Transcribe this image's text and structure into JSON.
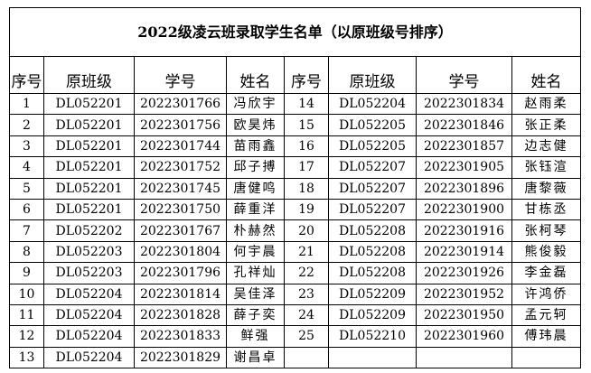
{
  "title": "2022级凌云班录取学生名单（以原班级号排序）",
  "headers": [
    "序号",
    "原班级",
    "学号",
    "姓名",
    "序号",
    "原班级",
    "学号",
    "姓名"
  ],
  "left": [
    [
      "1",
      "DL052201",
      "2022301766",
      "冯欣宇"
    ],
    [
      "2",
      "DL052201",
      "2022301756",
      "欧昊炜"
    ],
    [
      "3",
      "DL052201",
      "2022301744",
      "苗雨鑫"
    ],
    [
      "4",
      "DL052201",
      "2022301752",
      "邱子搏"
    ],
    [
      "5",
      "DL052201",
      "2022301745",
      "唐健鸣"
    ],
    [
      "6",
      "DL052201",
      "2022301750",
      "薛重洋"
    ],
    [
      "7",
      "DL052202",
      "2022301767",
      "朴赫然"
    ],
    [
      "8",
      "DL052203",
      "2022301804",
      "何宇晨"
    ],
    [
      "9",
      "DL052203",
      "2022301796",
      "孔祥灿"
    ],
    [
      "10",
      "DL052204",
      "2022301814",
      "吴佳泽"
    ],
    [
      "11",
      "DL052204",
      "2022301828",
      "薛子奕"
    ],
    [
      "12",
      "DL052204",
      "2022301833",
      "鲜强"
    ],
    [
      "13",
      "DL052204",
      "2022301829",
      "谢昌卓"
    ]
  ],
  "right": [
    [
      "14",
      "DL052204",
      "2022301834",
      "赵雨柔"
    ],
    [
      "15",
      "DL052205",
      "2022301846",
      "张正柔"
    ],
    [
      "16",
      "DL052205",
      "2022301857",
      "边志健"
    ],
    [
      "17",
      "DL052207",
      "2022301905",
      "张钰渲"
    ],
    [
      "18",
      "DL052207",
      "2022301896",
      "唐黎薇"
    ],
    [
      "19",
      "DL052207",
      "2022301900",
      "甘栋丞"
    ],
    [
      "20",
      "DL052208",
      "2022301916",
      "张柯琴"
    ],
    [
      "21",
      "DL052208",
      "2022301914",
      "熊俊毅"
    ],
    [
      "22",
      "DL052208",
      "2022301926",
      "李金磊"
    ],
    [
      "23",
      "DL052209",
      "2022301952",
      "许鸿侨"
    ],
    [
      "24",
      "DL052209",
      "2022301950",
      "孟元轲"
    ],
    [
      "25",
      "DL052210",
      "2022301960",
      "傅玮晨"
    ],
    [
      "",
      "",
      "",
      ""
    ]
  ]
}
